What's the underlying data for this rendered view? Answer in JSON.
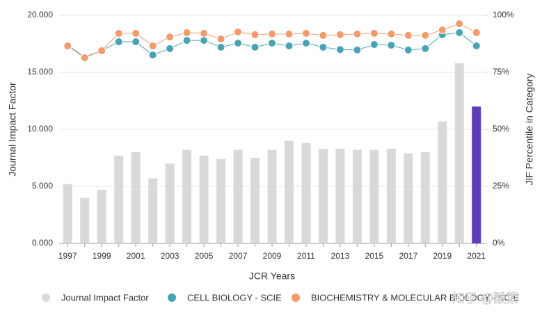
{
  "chart_data": {
    "type": "bar",
    "x_label": "JCR Years",
    "y_label": "Journal Impact Factor",
    "y2_label": "JIF Percentile in Category",
    "watermark": "知乎 @酸菜",
    "categories": [
      "1997",
      null,
      "1999",
      null,
      "2001",
      null,
      "2003",
      null,
      "2005",
      null,
      "2007",
      null,
      "2009",
      null,
      "2011",
      null,
      "2013",
      null,
      "2015",
      null,
      "2017",
      null,
      "2019",
      null,
      "2021"
    ],
    "ylim": [
      0,
      20
    ],
    "yticks": [
      {
        "value": 0,
        "label": "0.000"
      },
      {
        "value": 5,
        "label": "5.000"
      },
      {
        "value": 10,
        "label": "10.000"
      },
      {
        "value": 15,
        "label": "15.000"
      },
      {
        "value": 20,
        "label": "20.000"
      }
    ],
    "y2lim": [
      0,
      100
    ],
    "y2ticks": [
      {
        "value": 0,
        "label": "0%"
      },
      {
        "value": 25,
        "label": "25%"
      },
      {
        "value": 50,
        "label": "50%"
      },
      {
        "value": 75,
        "label": "75%"
      },
      {
        "value": 100,
        "label": "100%"
      }
    ],
    "series": [
      {
        "name": "Journal Impact Factor",
        "type": "bar",
        "color": "#d9d9d9",
        "colors": [
          "#d9d9d9",
          "#d9d9d9",
          "#d9d9d9",
          "#d9d9d9",
          "#d9d9d9",
          "#d9d9d9",
          "#d9d9d9",
          "#d9d9d9",
          "#d9d9d9",
          "#d9d9d9",
          "#d9d9d9",
          "#d9d9d9",
          "#d9d9d9",
          "#d9d9d9",
          "#d9d9d9",
          "#d9d9d9",
          "#d9d9d9",
          "#d9d9d9",
          "#d9d9d9",
          "#d9d9d9",
          "#d9d9d9",
          "#d9d9d9",
          "#d9d9d9",
          "#d9d9d9",
          "#5e3cb8"
        ],
        "values": [
          5.2,
          4.0,
          4.7,
          7.7,
          8.0,
          5.7,
          7.0,
          8.2,
          7.7,
          7.4,
          8.2,
          7.5,
          8.2,
          9.0,
          8.8,
          8.3,
          8.3,
          8.2,
          8.2,
          8.3,
          7.9,
          8.0,
          10.7,
          15.8,
          12.0
        ]
      },
      {
        "name": "CELL BIOLOGY - SCIE",
        "type": "line",
        "axis": "y2",
        "color": "#4aa3b4",
        "values": [
          86.9,
          81.7,
          84.5,
          88.4,
          88.4,
          82.6,
          85.4,
          89.0,
          89.0,
          86.0,
          87.8,
          86.0,
          87.8,
          86.6,
          87.8,
          86.0,
          85.0,
          84.8,
          87.2,
          86.9,
          84.8,
          85.4,
          91.5,
          92.4,
          86.6
        ]
      },
      {
        "name": "BIOCHEMISTRY & MOLECULAR BIOLOGY - SCIE",
        "type": "line",
        "axis": "y2",
        "color": "#f29b6c",
        "values": [
          86.6,
          81.4,
          84.5,
          92.1,
          92.1,
          86.6,
          90.5,
          92.4,
          92.1,
          89.6,
          92.7,
          91.5,
          91.8,
          91.8,
          92.1,
          91.2,
          91.5,
          91.8,
          92.1,
          91.8,
          91.2,
          91.2,
          93.6,
          96.3,
          92.4
        ]
      }
    ],
    "grid": true
  }
}
